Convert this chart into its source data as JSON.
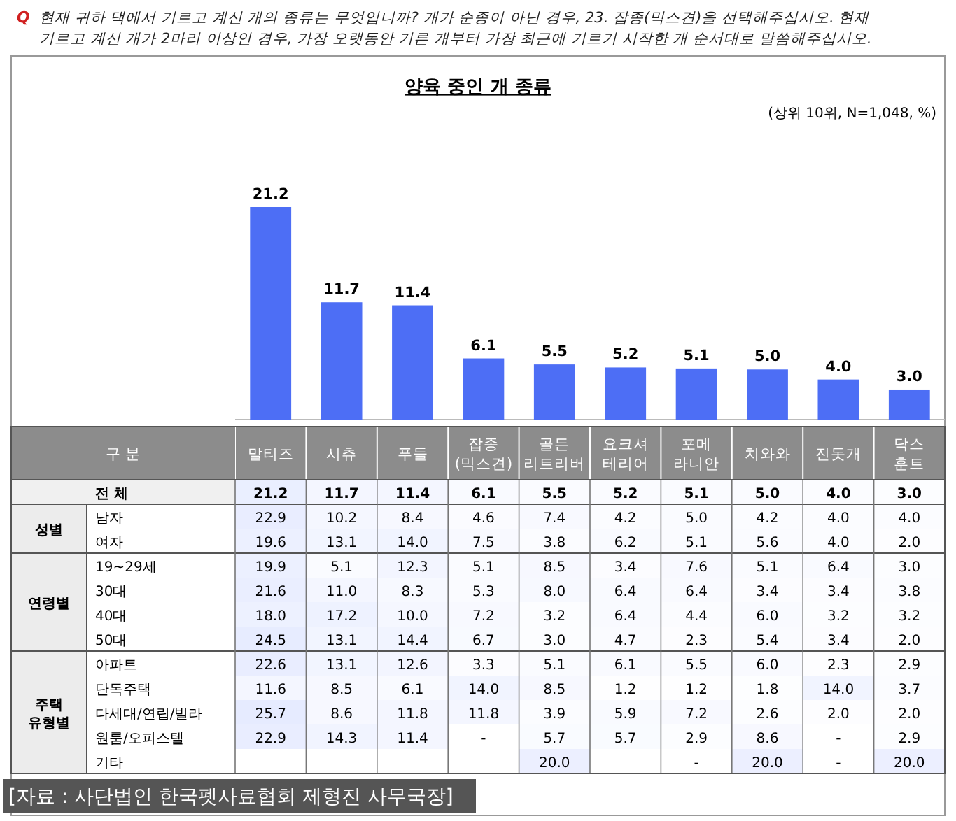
{
  "chart_data": [
    {
      "type": "bar",
      "title": "양육 중인 개 종류",
      "subtitle": "(상위 10위, N=1,048, %)",
      "categories": [
        null,
        null,
        null,
        null,
        null,
        null,
        null,
        null,
        null,
        null
      ],
      "values": [
        21.2,
        11.7,
        11.4,
        6.1,
        5.5,
        5.2,
        5.1,
        5.0,
        4.0,
        3.0
      ],
      "value_labels": [
        "21.2",
        "11.7",
        "11.4",
        "6.1",
        "5.5",
        "5.2",
        "5.1",
        "5.0",
        "4.0",
        "3.0"
      ],
      "color": "#4d6ef5",
      "legend": false,
      "annotations": [
        "Q 현재 귀하 댁에서 기르고 계신 개의 종류는 무엇입니까? 개가 순종이 아닌 경우, 23. 잡종(믹스견)을 선택해주십시오. 현재 기르고 계신 개가 2마리 이상인 경우, 가장 오랫동안 기른 개부터 가장 최근에 기르기 시작한 개 순서대로 말씀해주십시오."
      ]
    },
    {
      "type": "heatmap",
      "categories": [
        "말티즈",
        "시츄",
        "푸들",
        "잡종(믹스견)",
        "골든 리트리버",
        "요크셔 테리어",
        "포메라니안",
        "치와와",
        "진돗개",
        "닥스훈트"
      ],
      "y_categories": [
        "전 체",
        "남자",
        "여자",
        "19~29세",
        "30대",
        "40대",
        "50대",
        "아파트",
        "단독주택",
        "다세대/연립/빌라",
        "원룸/오피스텔",
        "기타"
      ],
      "cells": [
        [
          21.2,
          11.7,
          11.4,
          6.1,
          5.5,
          5.2,
          5.1,
          5.0,
          4.0,
          3.0
        ],
        [
          22.9,
          10.2,
          8.4,
          4.6,
          7.4,
          4.2,
          5.0,
          4.2,
          4.0,
          4.0
        ],
        [
          19.6,
          13.1,
          14.0,
          7.5,
          3.8,
          6.2,
          5.1,
          5.6,
          4.0,
          2.0
        ],
        [
          19.9,
          5.1,
          12.3,
          5.1,
          8.5,
          3.4,
          7.6,
          5.1,
          6.4,
          3.0
        ],
        [
          21.6,
          11.0,
          8.3,
          5.3,
          8.0,
          6.4,
          6.4,
          3.4,
          3.4,
          3.8
        ],
        [
          18.0,
          17.2,
          10.0,
          7.2,
          3.2,
          6.4,
          4.4,
          6.0,
          3.2,
          3.2
        ],
        [
          24.5,
          13.1,
          14.4,
          6.7,
          3.0,
          4.7,
          2.3,
          5.4,
          3.4,
          2.0
        ],
        [
          22.6,
          13.1,
          12.6,
          3.3,
          5.1,
          6.1,
          5.5,
          6.0,
          2.3,
          2.9
        ],
        [
          11.6,
          8.5,
          6.1,
          14.0,
          8.5,
          1.2,
          1.2,
          1.8,
          14.0,
          3.7
        ],
        [
          25.7,
          8.6,
          11.8,
          11.8,
          3.9,
          5.9,
          7.2,
          2.6,
          2.0,
          2.0
        ],
        [
          22.9,
          14.3,
          11.4,
          null,
          5.7,
          5.7,
          2.9,
          8.6,
          null,
          2.9
        ],
        [
          null,
          null,
          null,
          null,
          20.0,
          null,
          null,
          20.0,
          null,
          20.0
        ]
      ],
      "cell_labels": [
        [
          "21.2",
          "11.7",
          "11.4",
          "6.1",
          "5.5",
          "5.2",
          "5.1",
          "5.0",
          "4.0",
          "3.0"
        ],
        [
          "22.9",
          "10.2",
          "8.4",
          "4.6",
          "7.4",
          "4.2",
          "5.0",
          "4.2",
          "4.0",
          "4.0"
        ],
        [
          "19.6",
          "13.1",
          "14.0",
          "7.5",
          "3.8",
          "6.2",
          "5.1",
          "5.6",
          "4.0",
          "2.0"
        ],
        [
          "19.9",
          "5.1",
          "12.3",
          "5.1",
          "8.5",
          "3.4",
          "7.6",
          "5.1",
          "6.4",
          "3.0"
        ],
        [
          "21.6",
          "11.0",
          "8.3",
          "5.3",
          "8.0",
          "6.4",
          "6.4",
          "3.4",
          "3.4",
          "3.8"
        ],
        [
          "18.0",
          "17.2",
          "10.0",
          "7.2",
          "3.2",
          "6.4",
          "4.4",
          "6.0",
          "3.2",
          "3.2"
        ],
        [
          "24.5",
          "13.1",
          "14.4",
          "6.7",
          "3.0",
          "4.7",
          "2.3",
          "5.4",
          "3.4",
          "2.0"
        ],
        [
          "22.6",
          "13.1",
          "12.6",
          "3.3",
          "5.1",
          "6.1",
          "5.5",
          "6.0",
          "2.3",
          "2.9"
        ],
        [
          "11.6",
          "8.5",
          "6.1",
          "14.0",
          "8.5",
          "1.2",
          "1.2",
          "1.8",
          "14.0",
          "3.7"
        ],
        [
          "25.7",
          "8.6",
          "11.8",
          "11.8",
          "3.9",
          "5.9",
          "7.2",
          "2.6",
          "2.0",
          "2.0"
        ],
        [
          "22.9",
          "14.3",
          "11.4",
          "-",
          "5.7",
          "5.7",
          "2.9",
          "8.6",
          "-",
          "2.9"
        ],
        [
          null,
          null,
          null,
          null,
          "20.0",
          null,
          "-",
          "20.0",
          "-",
          "20.0"
        ]
      ],
      "annotations": [
        "구 분",
        "성별",
        "연령별",
        "주택 유형별",
        "[자료 : 사단법인 한국펫사료협회 제형진 사무국장]"
      ]
    }
  ]
}
